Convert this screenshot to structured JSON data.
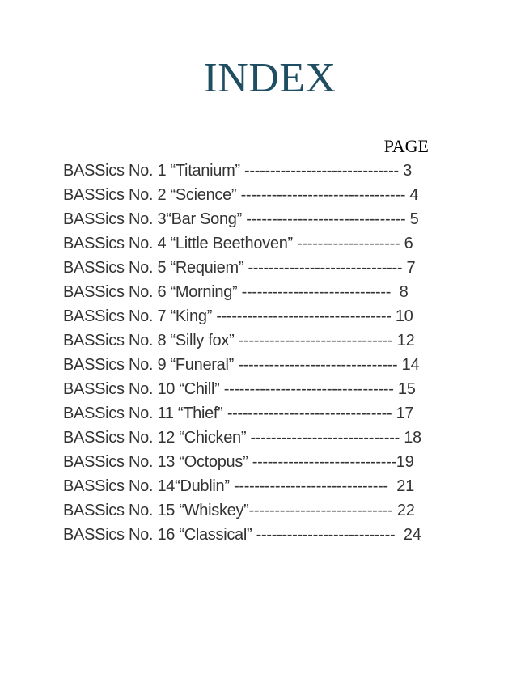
{
  "header": {
    "title": "INDEX",
    "column_header": "PAGE"
  },
  "colors": {
    "title": "#1f4e63",
    "body_text": "#333333",
    "column_header": "#000000",
    "background": "#ffffff"
  },
  "entries": [
    {
      "label": "BASSics No. 1 “Titanium” ",
      "leader": "------------------------------",
      "page": " 3"
    },
    {
      "label": "BASSics No. 2 “Science” ",
      "leader": "--------------------------------",
      "page": " 4"
    },
    {
      "label": "BASSics No. 3“Bar Song” ",
      "leader": "-------------------------------",
      "page": " 5"
    },
    {
      "label": "BASSics No. 4 “Little Beethoven” ",
      "leader": "--------------------",
      "page": " 6"
    },
    {
      "label": "BASSics No. 5 “Requiem” ",
      "leader": "------------------------------",
      "page": " 7"
    },
    {
      "label": "BASSics No. 6 “Morning” ",
      "leader": "-----------------------------",
      "page": "  8"
    },
    {
      "label": "BASSics No. 7 “King” ",
      "leader": "----------------------------------",
      "page": " 10"
    },
    {
      "label": "BASSics No. 8 “Silly fox” ",
      "leader": "------------------------------",
      "page": " 12"
    },
    {
      "label": "BASSics No. 9 “Funeral” ",
      "leader": "-------------------------------",
      "page": " 14"
    },
    {
      "label": "BASSics No. 10 “Chill” ",
      "leader": "---------------------------------",
      "page": " 15"
    },
    {
      "label": "BASSics No. 11 “Thief” ",
      "leader": "--------------------------------",
      "page": " 17"
    },
    {
      "label": "BASSics No. 12 “Chicken” ",
      "leader": "-----------------------------",
      "page": " 18"
    },
    {
      "label": "BASSics No. 13 “Octopus” ",
      "leader": "----------------------------",
      "page": "19"
    },
    {
      "label": "BASSics No. 14“Dublin” ",
      "leader": "------------------------------",
      "page": "  21"
    },
    {
      "label": "BASSics No. 15 “Whiskey”",
      "leader": "----------------------------",
      "page": " 22"
    },
    {
      "label": "BASSics No. 16 “Classical” ",
      "leader": "---------------------------",
      "page": "  24"
    }
  ]
}
